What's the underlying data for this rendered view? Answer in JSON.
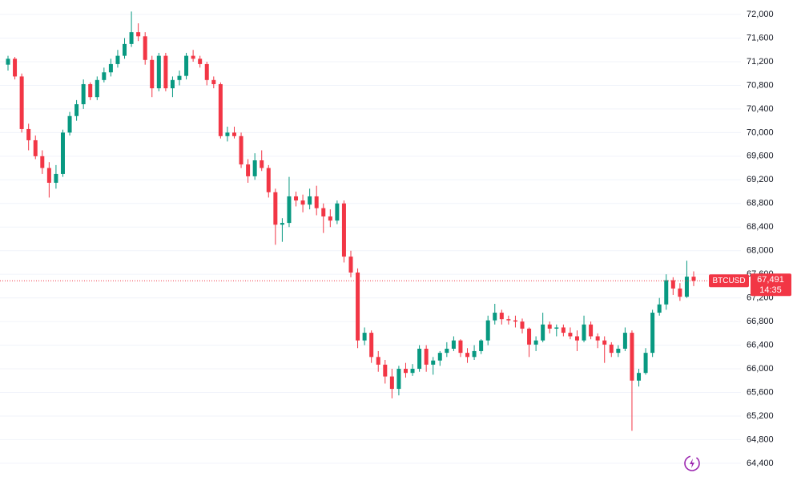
{
  "chart_data": {
    "type": "candlestick",
    "symbol": "BTCUSD",
    "countdown": "14:35",
    "last_price": {
      "value": 67491,
      "label": "67,491"
    },
    "up_color": "#089981",
    "down_color": "#f23645",
    "grid": true,
    "ylim": [
      64100,
      72245
    ],
    "yticks": [
      {
        "value": 64400,
        "label": "64,400"
      },
      {
        "value": 64800,
        "label": "64,800"
      },
      {
        "value": 65200,
        "label": "65,200"
      },
      {
        "value": 65600,
        "label": "65,600"
      },
      {
        "value": 66000,
        "label": "66,000"
      },
      {
        "value": 66400,
        "label": "66,400"
      },
      {
        "value": 66800,
        "label": "66,800"
      },
      {
        "value": 67200,
        "label": "67,200"
      },
      {
        "value": 67600,
        "label": "67,600"
      },
      {
        "value": 68000,
        "label": "68,000"
      },
      {
        "value": 68400,
        "label": "68,400"
      },
      {
        "value": 68800,
        "label": "68,800"
      },
      {
        "value": 69200,
        "label": "69,200"
      },
      {
        "value": 69600,
        "label": "69,600"
      },
      {
        "value": 70000,
        "label": "70,000"
      },
      {
        "value": 70400,
        "label": "70,400"
      },
      {
        "value": 70800,
        "label": "70,800"
      },
      {
        "value": 71200,
        "label": "71,200"
      },
      {
        "value": 71600,
        "label": "71,600"
      },
      {
        "value": 72000,
        "label": "72,000"
      }
    ],
    "candles": [
      [
        71150,
        71300,
        71050,
        71250
      ],
      [
        71250,
        71280,
        70900,
        70950
      ],
      [
        70950,
        71000,
        70000,
        70060
      ],
      [
        70060,
        70150,
        69700,
        69870
      ],
      [
        69870,
        69950,
        69550,
        69600
      ],
      [
        69600,
        69700,
        69300,
        69400
      ],
      [
        69400,
        69500,
        68900,
        69150
      ],
      [
        69150,
        69450,
        69050,
        69300
      ],
      [
        69300,
        70050,
        69250,
        70000
      ],
      [
        70000,
        70350,
        69950,
        70280
      ],
      [
        70280,
        70550,
        70200,
        70480
      ],
      [
        70480,
        70900,
        70400,
        70820
      ],
      [
        70820,
        70850,
        70550,
        70600
      ],
      [
        70600,
        70950,
        70550,
        70890
      ],
      [
        70890,
        71100,
        70850,
        71020
      ],
      [
        71020,
        71250,
        70950,
        71160
      ],
      [
        71160,
        71400,
        71100,
        71300
      ],
      [
        71300,
        71600,
        71250,
        71500
      ],
      [
        71500,
        72050,
        71450,
        71700
      ],
      [
        71700,
        71850,
        71550,
        71630
      ],
      [
        71630,
        71700,
        71150,
        71230
      ],
      [
        71230,
        71300,
        70600,
        70750
      ],
      [
        70750,
        71350,
        70700,
        71300
      ],
      [
        71300,
        71350,
        70700,
        70750
      ],
      [
        70750,
        70950,
        70600,
        70890
      ],
      [
        70890,
        71050,
        70800,
        70960
      ],
      [
        70960,
        71350,
        70900,
        71300
      ],
      [
        71300,
        71400,
        71200,
        71250
      ],
      [
        71250,
        71300,
        71100,
        71160
      ],
      [
        71160,
        71200,
        70800,
        70890
      ],
      [
        70890,
        70950,
        70750,
        70820
      ],
      [
        70820,
        70850,
        69900,
        69940
      ],
      [
        69940,
        70100,
        69850,
        70000
      ],
      [
        70000,
        70100,
        69900,
        69940
      ],
      [
        69940,
        70000,
        69400,
        69460
      ],
      [
        69460,
        69550,
        69150,
        69260
      ],
      [
        69260,
        69650,
        69200,
        69530
      ],
      [
        69530,
        69700,
        69350,
        69400
      ],
      [
        69400,
        69450,
        68900,
        68990
      ],
      [
        68990,
        69050,
        68100,
        68440
      ],
      [
        68440,
        68550,
        68150,
        68470
      ],
      [
        68470,
        69250,
        68400,
        68920
      ],
      [
        68920,
        69000,
        68750,
        68850
      ],
      [
        68850,
        68950,
        68650,
        68780
      ],
      [
        68780,
        69050,
        68700,
        68920
      ],
      [
        68920,
        69100,
        68600,
        68720
      ],
      [
        68720,
        68800,
        68300,
        68580
      ],
      [
        68580,
        68700,
        68400,
        68510
      ],
      [
        68510,
        68850,
        68450,
        68800
      ],
      [
        68800,
        68850,
        67800,
        67900
      ],
      [
        67900,
        68000,
        67550,
        67630
      ],
      [
        67630,
        67700,
        66350,
        66480
      ],
      [
        66480,
        66700,
        66400,
        66610
      ],
      [
        66610,
        66650,
        66100,
        66200
      ],
      [
        66200,
        66300,
        65950,
        66070
      ],
      [
        66070,
        66150,
        65750,
        65870
      ],
      [
        65870,
        66000,
        65500,
        65660
      ],
      [
        65660,
        66050,
        65550,
        66000
      ],
      [
        66000,
        66100,
        65850,
        65930
      ],
      [
        65930,
        66080,
        65880,
        66000
      ],
      [
        66000,
        66400,
        65950,
        66340
      ],
      [
        66340,
        66400,
        65950,
        66070
      ],
      [
        66070,
        66200,
        65900,
        66140
      ],
      [
        66140,
        66300,
        66050,
        66270
      ],
      [
        66270,
        66450,
        66200,
        66340
      ],
      [
        66340,
        66550,
        66300,
        66480
      ],
      [
        66480,
        66500,
        66200,
        66270
      ],
      [
        66270,
        66350,
        66100,
        66200
      ],
      [
        66200,
        66400,
        66150,
        66300
      ],
      [
        66300,
        66500,
        66250,
        66480
      ],
      [
        66480,
        66900,
        66400,
        66820
      ],
      [
        66820,
        67100,
        66750,
        66950
      ],
      [
        66950,
        67000,
        66750,
        66840
      ],
      [
        66840,
        66900,
        66750,
        66820
      ],
      [
        66820,
        66900,
        66700,
        66800
      ],
      [
        66800,
        66850,
        66600,
        66680
      ],
      [
        66680,
        66700,
        66200,
        66410
      ],
      [
        66410,
        66550,
        66300,
        66480
      ],
      [
        66480,
        66950,
        66450,
        66750
      ],
      [
        66750,
        66800,
        66600,
        66680
      ],
      [
        66680,
        66750,
        66550,
        66700
      ],
      [
        66700,
        66750,
        66550,
        66610
      ],
      [
        66610,
        66700,
        66500,
        66550
      ],
      [
        66550,
        66650,
        66300,
        66480
      ],
      [
        66480,
        66900,
        66450,
        66750
      ],
      [
        66750,
        66800,
        66500,
        66550
      ],
      [
        66550,
        66600,
        66350,
        66480
      ],
      [
        66480,
        66550,
        66100,
        66410
      ],
      [
        66410,
        66450,
        66200,
        66270
      ],
      [
        66270,
        66400,
        66200,
        66340
      ],
      [
        66340,
        66700,
        66300,
        66610
      ],
      [
        66610,
        66650,
        64950,
        65800
      ],
      [
        65800,
        66000,
        65700,
        65930
      ],
      [
        65930,
        66350,
        65900,
        66270
      ],
      [
        66270,
        67000,
        66200,
        66950
      ],
      [
        66950,
        67200,
        66900,
        67090
      ],
      [
        67090,
        67600,
        67000,
        67500
      ],
      [
        67500,
        67550,
        67250,
        67360
      ],
      [
        67360,
        67450,
        67150,
        67220
      ],
      [
        67220,
        67830,
        67200,
        67560
      ],
      [
        67560,
        67650,
        67400,
        67491
      ]
    ]
  }
}
